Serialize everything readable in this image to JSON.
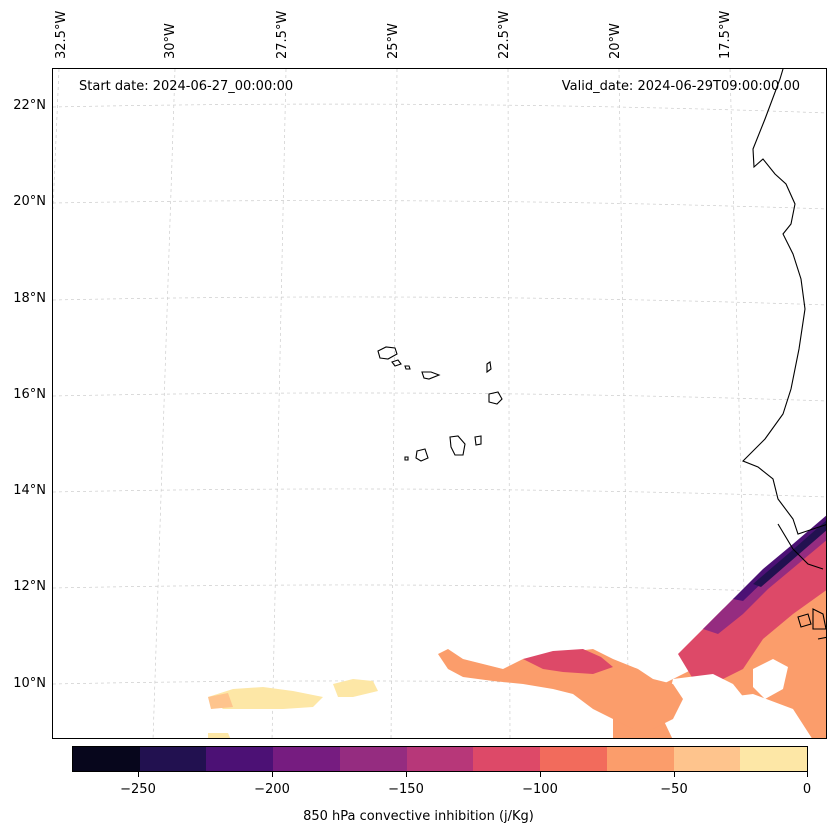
{
  "map": {
    "start_date": "Start date: 2024-06-27_00:00:00",
    "valid_date": "Valid_date: 2024-06-29T09:00:00.00",
    "lon_labels": [
      "32.5°W",
      "30°W",
      "27.5°W",
      "25°W",
      "22.5°W",
      "20°W",
      "17.5°W"
    ],
    "lat_labels": [
      "22°N",
      "20°N",
      "18°N",
      "16°N",
      "14°N",
      "12°N",
      "10°N"
    ],
    "colors": {
      "land_line": "#000000",
      "grid": "#cccccc"
    }
  },
  "colorbar": {
    "title": "850 hPa convective inhibition (j/Kg)",
    "ticks": [
      "−250",
      "−200",
      "−150",
      "−100",
      "−50",
      "0"
    ],
    "colors": [
      "#07061c",
      "#221150",
      "#4c1175",
      "#761c80",
      "#952c80",
      "#b73779",
      "#dd4968",
      "#f26b5c",
      "#fb9d6b",
      "#fec48d",
      "#fde7a6"
    ]
  }
}
